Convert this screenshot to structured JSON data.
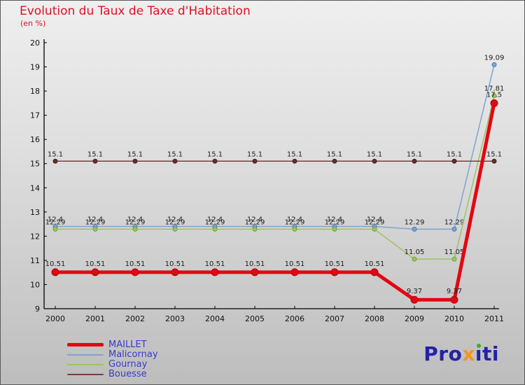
{
  "header": {
    "title": "Evolution du Taux de Taxe d'Habitation",
    "subtitle": "(en %)"
  },
  "chart_data": {
    "type": "line",
    "title": "Evolution du Taux de Taxe d'Habitation",
    "ylabel": "en %",
    "x": [
      2000,
      2001,
      2002,
      2003,
      2004,
      2005,
      2006,
      2007,
      2008,
      2009,
      2010,
      2011
    ],
    "ylim": [
      9,
      20
    ],
    "yticks": [
      9,
      10,
      11,
      12,
      13,
      14,
      15,
      16,
      17,
      18,
      19,
      20
    ],
    "grid": false,
    "legend_position": "bottom-left",
    "series": [
      {
        "name": "Malicornay",
        "color": "#7da5cc",
        "marker_color": "#7da5cc",
        "marker_stroke": "#4a7ab5",
        "width": 1.5,
        "marker_radius": 3,
        "values": [
          12.4,
          12.4,
          12.4,
          12.4,
          12.4,
          12.4,
          12.4,
          12.4,
          12.4,
          12.29,
          12.29,
          19.09
        ]
      },
      {
        "name": "Gournay",
        "color": "#9cc35e",
        "marker_color": "#9cc35e",
        "marker_stroke": "#74a13c",
        "width": 1.5,
        "marker_radius": 3,
        "values": [
          12.29,
          12.29,
          12.29,
          12.29,
          12.29,
          12.29,
          12.29,
          12.29,
          12.29,
          11.05,
          11.05,
          17.81
        ]
      },
      {
        "name": "Bouesse",
        "color": "#774040",
        "marker_color": "#5f2f2f",
        "marker_stroke": "#4a2424",
        "width": 1.5,
        "marker_radius": 3,
        "values": [
          15.1,
          15.1,
          15.1,
          15.1,
          15.1,
          15.1,
          15.1,
          15.1,
          15.1,
          15.1,
          15.1,
          15.1
        ]
      },
      {
        "name": "MAILLET",
        "color": "#e30613",
        "marker_color": "#e30613",
        "marker_stroke": "#b00510",
        "width": 5,
        "marker_radius": 5,
        "values": [
          10.51,
          10.51,
          10.51,
          10.51,
          10.51,
          10.51,
          10.51,
          10.51,
          10.51,
          9.37,
          9.37,
          17.5
        ]
      }
    ]
  },
  "legend": {
    "rows": [
      {
        "label": "MAILLET",
        "series_index": 3
      },
      {
        "label": "Malicornay",
        "series_index": 0
      },
      {
        "label": "Gournay",
        "series_index": 1
      },
      {
        "label": "Bouesse",
        "series_index": 2
      }
    ]
  },
  "logo": {
    "parts": [
      {
        "text": "Pro",
        "color": "#2222a8"
      },
      {
        "text": "x",
        "color": "#f7941d"
      },
      {
        "text": "ı",
        "color": "#2222a8",
        "dot": "#3aaa35"
      },
      {
        "text": "ti",
        "color": "#2222a8"
      }
    ]
  },
  "colors": {
    "title": "#dc1125",
    "legend_text": "#3a3acd",
    "axis": "#000000",
    "data_label": "#1c1c1c"
  }
}
